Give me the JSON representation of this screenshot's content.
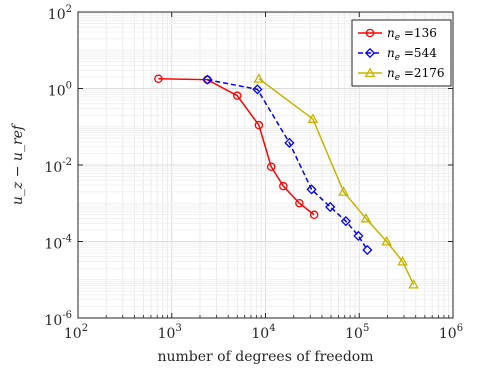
{
  "chart_data": {
    "type": "line",
    "title": "",
    "xlabel": "number of degrees of freedom",
    "ylabel": "u_z − u_ref",
    "xscale": "log",
    "yscale": "log",
    "xlim": [
      100,
      1000000
    ],
    "ylim": [
      1e-06,
      100
    ],
    "grid": true,
    "legend_placement": "top-right",
    "x_ticks": [
      {
        "value": 100,
        "base": "10",
        "exp": "2"
      },
      {
        "value": 1000,
        "base": "10",
        "exp": "3"
      },
      {
        "value": 10000,
        "base": "10",
        "exp": "4"
      },
      {
        "value": 100000,
        "base": "10",
        "exp": "5"
      },
      {
        "value": 1000000,
        "base": "10",
        "exp": "6"
      }
    ],
    "y_ticks": [
      {
        "value": 100,
        "base": "10",
        "exp": "2"
      },
      {
        "value": 1,
        "base": "10",
        "exp": "0"
      },
      {
        "value": 0.01,
        "base": "10",
        "exp": "-2"
      },
      {
        "value": 0.0001,
        "base": "10",
        "exp": "-4"
      },
      {
        "value": 1e-06,
        "base": "10",
        "exp": "-6"
      }
    ],
    "series": [
      {
        "name": "136",
        "legend_prefix": "n",
        "legend_sub": "e",
        "legend_eq": " =",
        "color": "#ff0000",
        "marker": "circle",
        "dash": "solid",
        "x": [
          720,
          2400,
          5000,
          8500,
          11500,
          15500,
          23000,
          33000
        ],
        "y": [
          1.8,
          1.7,
          0.65,
          0.11,
          0.009,
          0.0028,
          0.001,
          0.0005
        ]
      },
      {
        "name": "544",
        "legend_prefix": "n",
        "legend_sub": "e",
        "legend_eq": " =",
        "color": "#0000ff",
        "marker": "diamond",
        "dash": "dashed",
        "x": [
          2400,
          8200,
          18000,
          31000,
          49000,
          72000,
          98000,
          122000
        ],
        "y": [
          1.7,
          0.95,
          0.038,
          0.0023,
          0.0008,
          0.00034,
          0.00014,
          6e-05
        ]
      },
      {
        "name": "2176",
        "legend_prefix": "n",
        "legend_sub": "e",
        "legend_eq": " =",
        "color": "#c8b400",
        "marker": "triangle",
        "dash": "solid",
        "x": [
          8500,
          32000,
          68000,
          118000,
          196000,
          290000,
          380000
        ],
        "y": [
          1.8,
          0.16,
          0.002,
          0.0004,
          0.0001,
          3e-05,
          7.5e-06
        ]
      }
    ]
  }
}
